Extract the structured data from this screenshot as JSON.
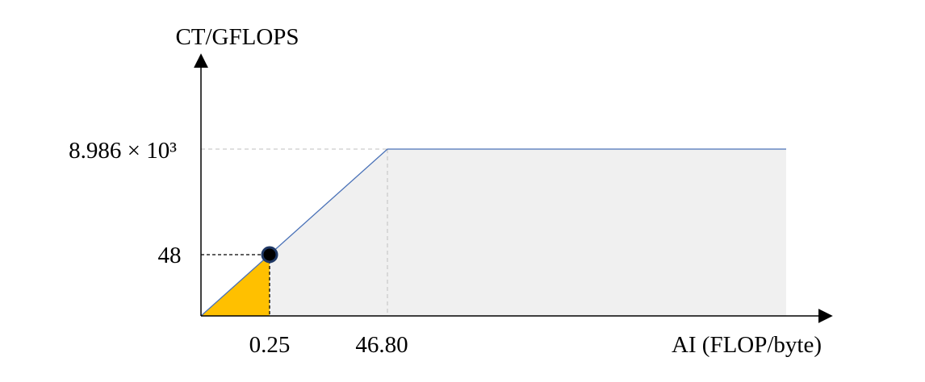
{
  "chart_data": {
    "type": "area",
    "title": "",
    "ylabel": "CT/GFLOPS",
    "xlabel": "AI (FLOP/byte)",
    "x_ticks": [
      "0.25",
      "46.80"
    ],
    "y_ticks": [
      "48",
      "8.986 × 10³"
    ],
    "roofline": [
      {
        "x": 0,
        "y": 0
      },
      {
        "x": 46.8,
        "y": 8986
      },
      {
        "x": "max",
        "y": 8986
      }
    ],
    "point": {
      "x": 0.25,
      "y": 48
    },
    "ridge": {
      "x": 46.8,
      "y": 8986
    },
    "grid": false,
    "colors": {
      "line": "#4a72b8",
      "attainable_area": "#f0f0f0",
      "highlight_area": "#ffc000",
      "point": "#000000",
      "point_outline": "#1f3864",
      "axis": "#000000",
      "guide_dashed": "#bfbfbf",
      "guide_dashed_dark": "#000000"
    }
  }
}
